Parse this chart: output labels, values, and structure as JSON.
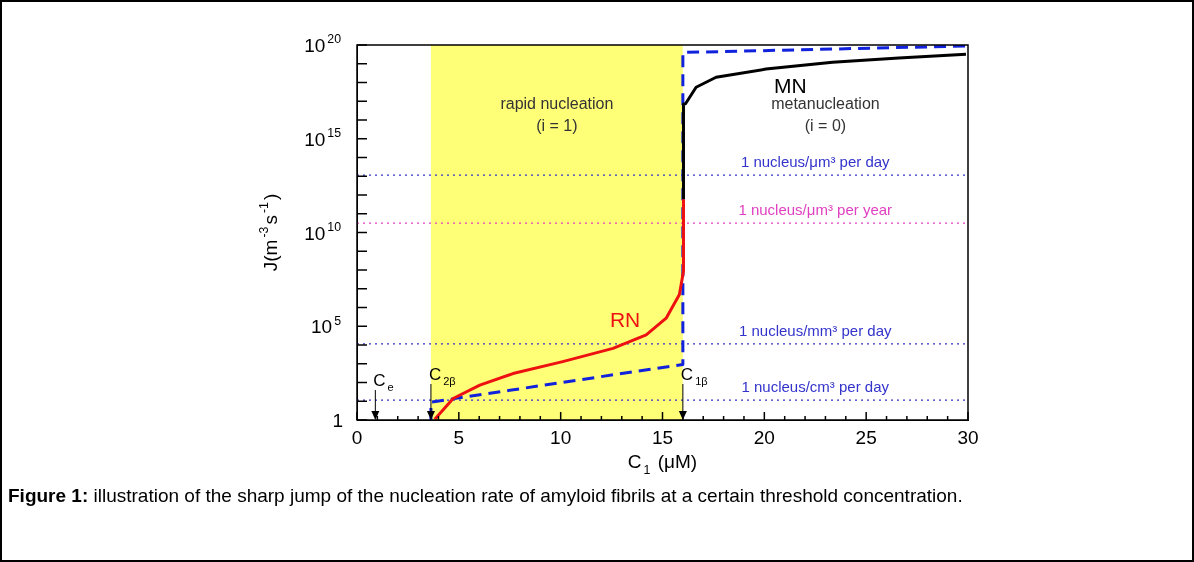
{
  "chart_data": {
    "type": "line",
    "xlabel": "C$_{1}$ (μM)",
    "ylabel": "J(m$^{-3}$s$^{-1}$)",
    "xlim": [
      0,
      30
    ],
    "ylim": [
      1,
      1e+20
    ],
    "log": "y",
    "grid": false,
    "legend": false,
    "marker": "none",
    "xticks": [
      0,
      {
        "value": 1,
        "label": null
      },
      {
        "value": 2,
        "label": null
      },
      {
        "value": 3,
        "label": null
      },
      {
        "value": 4,
        "label": null
      },
      5,
      {
        "value": 6,
        "label": null
      },
      {
        "value": 7,
        "label": null
      },
      {
        "value": 8,
        "label": null
      },
      {
        "value": 9,
        "label": null
      },
      10,
      {
        "value": 11,
        "label": null
      },
      {
        "value": 12,
        "label": null
      },
      {
        "value": 13,
        "label": null
      },
      {
        "value": 14,
        "label": null
      },
      15,
      {
        "value": 16,
        "label": null
      },
      {
        "value": 17,
        "label": null
      },
      {
        "value": 18,
        "label": null
      },
      {
        "value": 19,
        "label": null
      },
      20,
      {
        "value": 21,
        "label": null
      },
      {
        "value": 22,
        "label": null
      },
      {
        "value": 23,
        "label": null
      },
      {
        "value": 24,
        "label": null
      },
      25,
      {
        "value": 26,
        "label": null
      },
      {
        "value": 27,
        "label": null
      },
      {
        "value": 28,
        "label": null
      },
      {
        "value": 29,
        "label": null
      },
      30
    ],
    "yticks": [
      1,
      {
        "value": 10,
        "label": null
      },
      {
        "value": 100,
        "label": null
      },
      {
        "value": 1000,
        "label": null
      },
      {
        "value": 10000,
        "label": null
      },
      {
        "value": 100000,
        "label": "10$^{5}$"
      },
      {
        "value": 1000000.0,
        "label": null
      },
      {
        "value": 10000000.0,
        "label": null
      },
      {
        "value": 100000000.0,
        "label": null
      },
      {
        "value": 1000000000.0,
        "label": null
      },
      {
        "value": 10000000000.0,
        "label": "10$^{10}$"
      },
      {
        "value": 100000000000.0,
        "label": null
      },
      {
        "value": 1000000000000.0,
        "label": null
      },
      {
        "value": 10000000000000.0,
        "label": null
      },
      {
        "value": 100000000000000.0,
        "label": null
      },
      {
        "value": 1000000000000000.0,
        "label": "10$^{15}$"
      },
      {
        "value": 1e+16,
        "label": null
      },
      {
        "value": 1e+17,
        "label": null
      },
      {
        "value": 1e+18,
        "label": null
      },
      {
        "value": 1e+19,
        "label": null
      },
      {
        "value": 1e+20,
        "label": "10$^{20}$"
      }
    ],
    "series": [
      {
        "name": "RN",
        "type": "line",
        "color": "#ee1111",
        "line_style": "solid",
        "x": [
          3.82,
          4.72,
          6.03,
          7.66,
          10.1,
          12.57,
          14.2,
          15.18,
          15.83,
          16.03,
          16.03
        ],
        "values": [
          1.1,
          14,
          72,
          300,
          1300,
          6600,
          35000,
          270000,
          4900000.0,
          85000000.0,
          600000000000.0
        ]
      },
      {
        "name": "MN",
        "type": "line",
        "color": "#000000",
        "line_style": "solid",
        "x": [
          16.03,
          16.03,
          16.13,
          16.65,
          17.63,
          20.08,
          23.35,
          26.6,
          29.9
        ],
        "values": [
          600000000000.0,
          7e+16,
          7.4e+16,
          5.6e+17,
          1.9e+18,
          5.2e+18,
          1.2e+19,
          2e+19,
          3.2e+19
        ]
      },
      {
        "type": "line",
        "color": "#1122dd",
        "line_style": "dashed",
        "x": [
          3.63,
          3.63,
          15.26,
          16.0,
          16.0,
          30
        ],
        "values": [
          1,
          9,
          700,
          900,
          4e+19,
          8.9e+19
        ]
      }
    ],
    "bands": [
      {
        "axis": "x",
        "from": 3.63,
        "to": 16.0,
        "label": "rapid nucleation\n(i = 1)",
        "color": "#ffff77"
      },
      {
        "axis": "x",
        "from": 16.0,
        "to": 30,
        "label": "metanucleation\n(i = 0)",
        "color": "#ffffff"
      }
    ],
    "ref_lines": [
      {
        "axis": "y",
        "value": 11600000000000.0,
        "label": "1 nucleus/μm³ per day",
        "color": "#3333cc",
        "line_style": "dotted"
      },
      {
        "axis": "y",
        "value": 32000000000.0,
        "label": "1 nucleus/μm³ per year",
        "color": "#e040c0",
        "line_style": "dotted"
      },
      {
        "axis": "y",
        "value": 11600,
        "label": "1 nucleus/mm³ per day",
        "color": "#3333cc",
        "line_style": "dotted"
      },
      {
        "axis": "y",
        "value": 11.6,
        "label": "1 nucleus/cm³ per day",
        "color": "#3333cc",
        "line_style": "dotted"
      }
    ],
    "annotations": [
      "C$_{e}$",
      {
        "text": "C$_{2β}$",
        "x": 3.63,
        "y": 1
      },
      {
        "text": "C$_{1β}$",
        "x": 16.0,
        "y": 1
      },
      "Figure 1: illustration of the sharp jump of the nucleation rate of amyloid fibrils at a certain threshold concentration."
    ]
  }
}
